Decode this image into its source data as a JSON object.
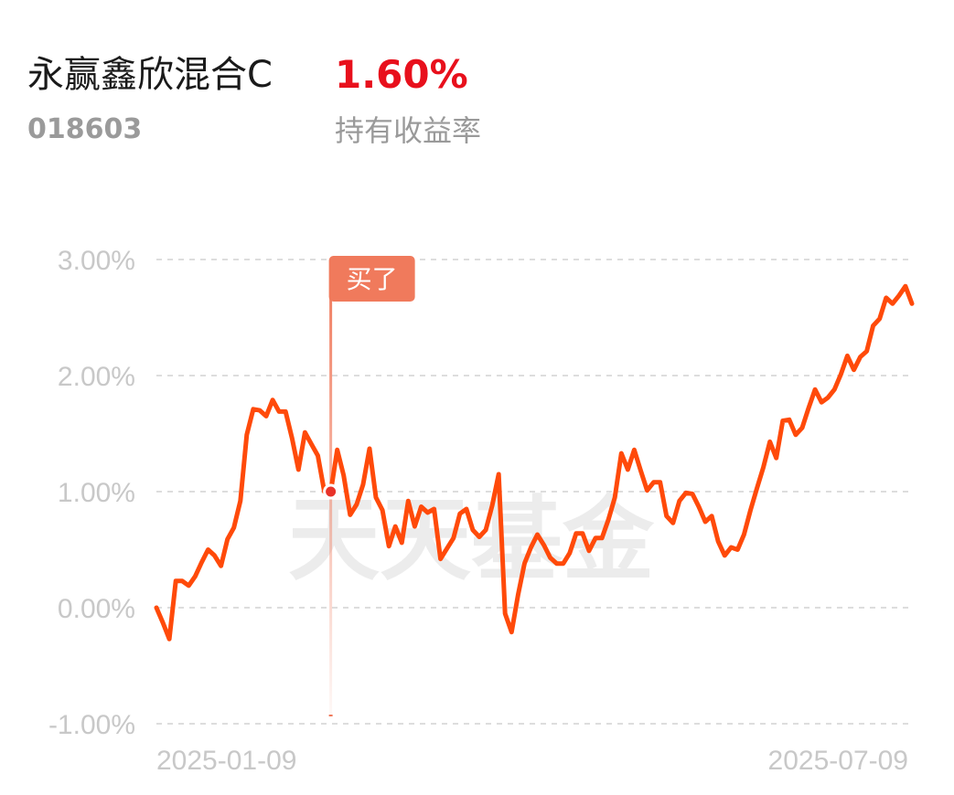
{
  "header": {
    "fund_name": "永赢鑫欣混合C",
    "return_value": "1.60%",
    "fund_code": "018603",
    "return_label": "持有收益率"
  },
  "watermark": "天天基金",
  "colors": {
    "line": "#ff4a0a",
    "marker": "#f07a5c",
    "return_text": "#e8101c",
    "grid": "#dddddd"
  },
  "chart_data": {
    "type": "line",
    "y_ticks": [
      "3.00%",
      "2.00%",
      "1.00%",
      "0.00%",
      "-1.00%"
    ],
    "y_tick_values": [
      3.0,
      2.0,
      1.0,
      0.0,
      -1.0
    ],
    "ylim": [
      -1.0,
      3.0
    ],
    "x_labels": [
      "2025-01-09",
      "2025-07-09"
    ],
    "grid": "horizontal dashed",
    "buy_marker": {
      "label": "买了",
      "index": 27
    },
    "series": [
      {
        "values": [
          0.0,
          -0.13,
          -0.27,
          0.23,
          0.23,
          0.19,
          0.27,
          0.39,
          0.5,
          0.45,
          0.36,
          0.59,
          0.69,
          0.92,
          1.49,
          1.71,
          1.7,
          1.65,
          1.79,
          1.69,
          1.69,
          1.46,
          1.19,
          1.51,
          1.41,
          1.31,
          1.0,
          1.0,
          1.36,
          1.14,
          0.8,
          0.89,
          1.06,
          1.37,
          0.95,
          0.84,
          0.53,
          0.7,
          0.56,
          0.92,
          0.7,
          0.87,
          0.82,
          0.85,
          0.42,
          0.51,
          0.6,
          0.81,
          0.85,
          0.67,
          0.61,
          0.67,
          0.88,
          1.15,
          -0.05,
          -0.21,
          0.11,
          0.38,
          0.52,
          0.63,
          0.54,
          0.43,
          0.38,
          0.38,
          0.47,
          0.64,
          0.64,
          0.49,
          0.6,
          0.6,
          0.76,
          0.95,
          1.33,
          1.19,
          1.36,
          1.18,
          1.01,
          1.08,
          1.08,
          0.79,
          0.73,
          0.92,
          0.99,
          0.98,
          0.87,
          0.74,
          0.79,
          0.57,
          0.45,
          0.52,
          0.5,
          0.63,
          0.84,
          1.03,
          1.21,
          1.43,
          1.29,
          1.61,
          1.62,
          1.49,
          1.55,
          1.72,
          1.88,
          1.77,
          1.81,
          1.88,
          2.01,
          2.17,
          2.05,
          2.16,
          2.21,
          2.43,
          2.49,
          2.67,
          2.62,
          2.69,
          2.77,
          2.62
        ]
      }
    ]
  }
}
